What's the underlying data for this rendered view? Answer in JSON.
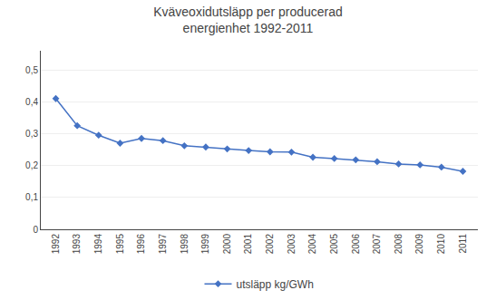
{
  "chart_data": {
    "type": "line",
    "title": "Kväveoxidutsläpp per producerad\nenergienhet 1992-2011",
    "x": [
      1992,
      1993,
      1994,
      1995,
      1996,
      1997,
      1998,
      1999,
      2000,
      2001,
      2002,
      2003,
      2004,
      2005,
      2006,
      2007,
      2008,
      2009,
      2010,
      2011
    ],
    "series": [
      {
        "name": "utsläpp kg/GWh",
        "color": "#4472C4",
        "marker": "diamond",
        "values": [
          0.41,
          0.325,
          0.295,
          0.27,
          0.285,
          0.278,
          0.262,
          0.258,
          0.252,
          0.247,
          0.243,
          0.242,
          0.226,
          0.222,
          0.218,
          0.212,
          0.205,
          0.202,
          0.195,
          0.182
        ]
      }
    ],
    "xlim": [
      1991.3,
      2011.7
    ],
    "xticks": [
      1992,
      1993,
      1994,
      1995,
      1996,
      1997,
      1998,
      1999,
      2000,
      2001,
      2002,
      2003,
      2004,
      2005,
      2006,
      2007,
      2008,
      2009,
      2010,
      2011
    ],
    "ylim": [
      0,
      0.56
    ],
    "yticks": [
      0,
      {
        "value": 0.1,
        "label": "0,1"
      },
      {
        "value": 0.2,
        "label": "0,2"
      },
      {
        "value": 0.3,
        "label": "0,3"
      },
      {
        "value": 0.4,
        "label": "0,4"
      },
      {
        "value": 0.5,
        "label": "0,5"
      }
    ],
    "grid": "y",
    "legend": "bottom"
  }
}
